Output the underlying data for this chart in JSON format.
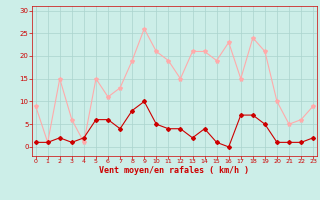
{
  "hours": [
    0,
    1,
    2,
    3,
    4,
    5,
    6,
    7,
    8,
    9,
    10,
    11,
    12,
    13,
    14,
    15,
    16,
    17,
    18,
    19,
    20,
    21,
    22,
    23
  ],
  "wind_avg": [
    1,
    1,
    2,
    1,
    2,
    6,
    6,
    4,
    8,
    10,
    5,
    4,
    4,
    2,
    4,
    1,
    0,
    7,
    7,
    5,
    1,
    1,
    1,
    2
  ],
  "wind_gust": [
    9,
    1,
    15,
    6,
    1,
    15,
    11,
    13,
    19,
    26,
    21,
    19,
    15,
    21,
    21,
    19,
    23,
    15,
    24,
    21,
    10,
    5,
    6,
    9
  ],
  "bg_color": "#cceee8",
  "grid_color": "#aad4ce",
  "avg_color": "#cc0000",
  "gust_color": "#ffaaaa",
  "xlabel": "Vent moyen/en rafales ( km/h )",
  "xlabel_color": "#cc0000",
  "tick_color": "#cc0000",
  "ylabel_ticks": [
    0,
    5,
    10,
    15,
    20,
    25,
    30
  ],
  "xlim": [
    -0.3,
    23.3
  ],
  "ylim": [
    -2,
    31
  ]
}
